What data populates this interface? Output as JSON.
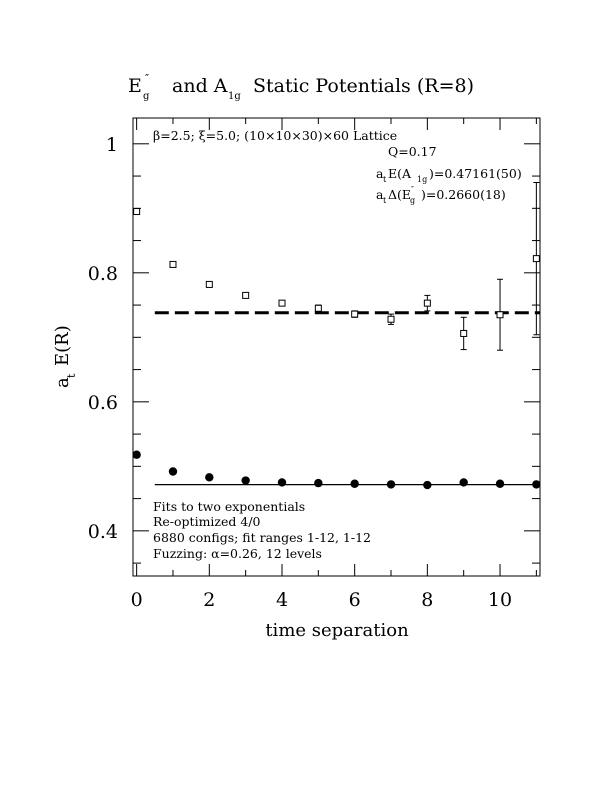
{
  "chart_data": {
    "type": "scatter",
    "title": {
      "main": "E",
      "main_sup": "″",
      "main_sub": "g",
      "middle": "and A",
      "middle_sub": "1g",
      "rest": "Static Potentials (R=8)"
    },
    "xlabel": "time separation",
    "ylabel": {
      "main": "a",
      "sub": "t",
      "rest": "E(R)"
    },
    "xlim": [
      -0.1,
      11.1
    ],
    "ylim": [
      0.33,
      1.04
    ],
    "x_ticks": [
      0,
      2,
      4,
      6,
      8,
      10
    ],
    "x_tick_labels": [
      "0",
      "2",
      "4",
      "6",
      "8",
      "10"
    ],
    "y_ticks": [
      0.4,
      0.6,
      0.8,
      1.0
    ],
    "y_tick_labels": [
      "0.4",
      "0.6",
      "0.8",
      "1"
    ],
    "grid": false,
    "series": [
      {
        "marker": "open-square",
        "points": [
          {
            "x": 0,
            "y": 0.895,
            "err": 0.002
          },
          {
            "x": 1,
            "y": 0.813,
            "err": 0.003
          },
          {
            "x": 2,
            "y": 0.782,
            "err": 0.003
          },
          {
            "x": 3,
            "y": 0.765,
            "err": 0.003
          },
          {
            "x": 4,
            "y": 0.753,
            "err": 0.004
          },
          {
            "x": 5,
            "y": 0.745,
            "err": 0.005
          },
          {
            "x": 6,
            "y": 0.736,
            "err": 0.005
          },
          {
            "x": 7,
            "y": 0.728,
            "err": 0.008
          },
          {
            "x": 8,
            "y": 0.753,
            "err": 0.012
          },
          {
            "x": 9,
            "y": 0.706,
            "err": 0.025
          },
          {
            "x": 10,
            "y": 0.735,
            "err": 0.055
          },
          {
            "x": 11,
            "y": 0.822,
            "err": 0.118
          }
        ]
      },
      {
        "marker": "filled-circle",
        "points": [
          {
            "x": 0,
            "y": 0.518,
            "err": 0.001
          },
          {
            "x": 1,
            "y": 0.492,
            "err": 0.001
          },
          {
            "x": 2,
            "y": 0.483,
            "err": 0.001
          },
          {
            "x": 3,
            "y": 0.478,
            "err": 0.001
          },
          {
            "x": 4,
            "y": 0.475,
            "err": 0.001
          },
          {
            "x": 5,
            "y": 0.474,
            "err": 0.001
          },
          {
            "x": 6,
            "y": 0.473,
            "err": 0.001
          },
          {
            "x": 7,
            "y": 0.472,
            "err": 0.001
          },
          {
            "x": 8,
            "y": 0.471,
            "err": 0.002
          },
          {
            "x": 9,
            "y": 0.475,
            "err": 0.002
          },
          {
            "x": 10,
            "y": 0.473,
            "err": 0.002
          },
          {
            "x": 11,
            "y": 0.472,
            "err": 0.003
          }
        ]
      }
    ],
    "fit_lines": [
      {
        "style": "dashed",
        "y": 0.738,
        "x_range": [
          0.5,
          11.1
        ]
      },
      {
        "style": "solid",
        "y": 0.4716,
        "x_range": [
          0.5,
          11.1
        ]
      }
    ],
    "annotations": {
      "lattice": "β=2.5; ξ=5.0; (10×10×30)×60 Lattice",
      "q": "Q=0.17",
      "energy": {
        "pre": "a",
        "pre_sub": "t",
        "mid": "E(A",
        "mid_sub": "1g",
        "post": ")=0.47161(50)"
      },
      "gap": {
        "pre": "a",
        "pre_sub": "t",
        "mid": "Δ(E",
        "mid_sup": "″",
        "mid_sub": "g",
        "post": ")=0.2660(18)"
      },
      "fit_notes": [
        "Fits to two exponentials",
        "Re-optimized 4/0",
        "6880 configs; fit ranges 1-12, 1-12",
        "Fuzzing: α=0.26, 12 levels"
      ]
    }
  }
}
